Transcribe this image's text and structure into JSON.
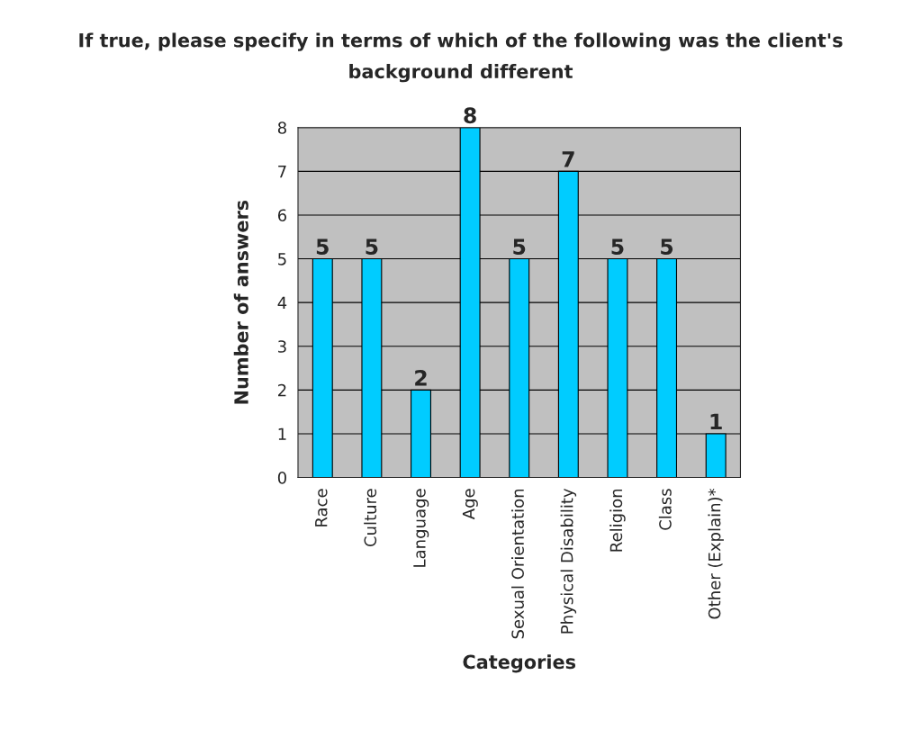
{
  "chart_data": {
    "type": "bar",
    "title": "If true, please specify in terms of which of the following was the client's background different",
    "xlabel": "Categories",
    "ylabel": "Number of answers",
    "categories": [
      "Race",
      "Culture",
      "Language",
      "Age",
      "Sexual Orientation",
      "Physical Disability",
      "Religion",
      "Class",
      "Other (Explain)*"
    ],
    "values": [
      5,
      5,
      2,
      8,
      5,
      7,
      5,
      5,
      1
    ],
    "color": "#00ccff",
    "ylim": [
      0,
      8
    ],
    "yticks": [
      0,
      1,
      2,
      3,
      4,
      5,
      6,
      7,
      8
    ],
    "grid": "y",
    "data_labels": true,
    "legend": false
  }
}
